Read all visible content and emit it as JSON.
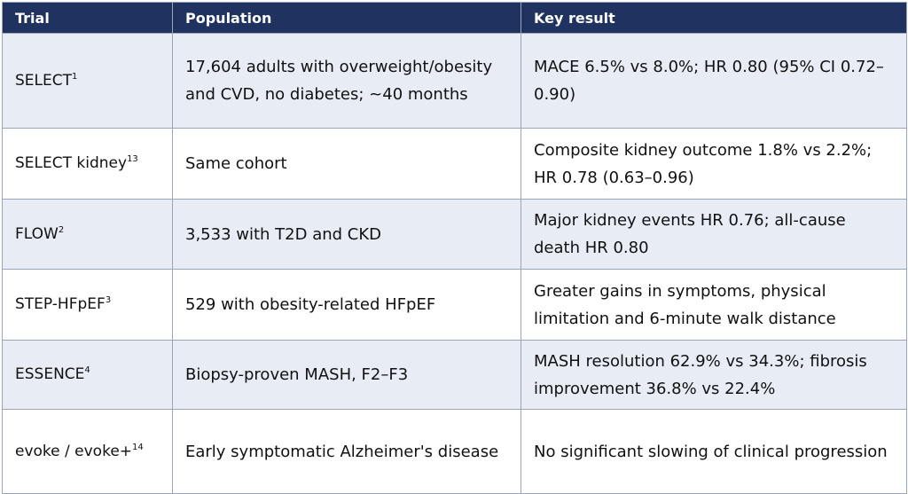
{
  "table": {
    "headers": [
      "Trial",
      "Population",
      "Key result"
    ],
    "rows": [
      {
        "trial": "SELECT",
        "sup": "1",
        "population": "17,604 adults with overweight/obesity and CVD, no diabetes; ~40 months",
        "result": "MACE 6.5% vs 8.0%; HR 0.80 (95% CI 0.72–0.90)"
      },
      {
        "trial": "SELECT kidney",
        "sup": "13",
        "population": "Same cohort",
        "result": "Composite kidney outcome 1.8% vs 2.2%; HR 0.78 (0.63–0.96)"
      },
      {
        "trial": "FLOW",
        "sup": "2",
        "population": "3,533 with T2D and CKD",
        "result": "Major kidney events HR 0.76; all-cause death HR 0.80"
      },
      {
        "trial": "STEP-HFpEF",
        "sup": "3",
        "population": "529 with obesity-related HFpEF",
        "result": "Greater gains in symptoms, physical limitation and 6-minute walk distance"
      },
      {
        "trial": "ESSENCE",
        "sup": "4",
        "population": "Biopsy-proven MASH, F2–F3",
        "result": "MASH resolution 62.9% vs 34.3%; fibrosis improvement 36.8% vs 22.4%"
      },
      {
        "trial": "evoke / evoke+",
        "sup": "14",
        "population": "Early symptomatic Alzheimer's disease",
        "result": "No significant slowing of clinical progression"
      }
    ]
  },
  "colors": {
    "header_bg": "#1f3260",
    "header_text": "#ffffff",
    "band": "#e7ecf5",
    "border": "#9aa6b8"
  }
}
